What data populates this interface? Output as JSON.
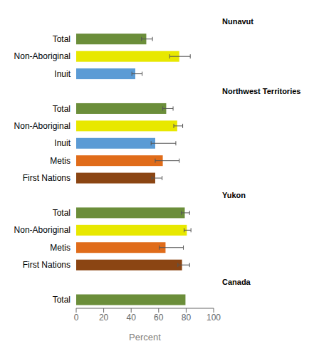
{
  "chart_data": {
    "type": "bar",
    "orientation": "horizontal",
    "xlabel": "Percent",
    "xlim": [
      0,
      100
    ],
    "xticks": [
      0,
      20,
      40,
      60,
      80,
      100
    ],
    "sections": [
      {
        "label": "Nunavut",
        "categories": [
          "Total",
          "Non-Aboriginal",
          "Inuit"
        ],
        "values": [
          51.0,
          75.0,
          43.0
        ],
        "ci_lower": [
          47.5,
          68.0,
          40.5
        ],
        "ci_upper": [
          55.5,
          83.0,
          48.0
        ],
        "colors": [
          "#6b8e3a",
          "#e8e800",
          "#5b9bd5"
        ]
      },
      {
        "label": "Northwest Territories",
        "categories": [
          "Total",
          "Non-Aboriginal",
          "Inuit",
          "Metis",
          "First Nations"
        ],
        "values": [
          65.5,
          73.5,
          57.5,
          63.0,
          57.5
        ],
        "ci_lower": [
          63.0,
          71.0,
          54.5,
          57.5,
          55.0
        ],
        "ci_upper": [
          70.5,
          77.5,
          72.5,
          75.0,
          62.5
        ],
        "colors": [
          "#6b8e3a",
          "#e8e800",
          "#5b9bd5",
          "#e06c1a",
          "#8b4513"
        ]
      },
      {
        "label": "Yukon",
        "categories": [
          "Total",
          "Non-Aboriginal",
          "Metis",
          "First Nations"
        ],
        "values": [
          79.0,
          80.5,
          65.0,
          77.0
        ],
        "ci_lower": [
          76.5,
          78.5,
          60.5,
          74.0
        ],
        "ci_upper": [
          82.5,
          83.5,
          78.0,
          82.5
        ],
        "colors": [
          "#6b8e3a",
          "#e8e800",
          "#e06c1a",
          "#8b4513"
        ]
      },
      {
        "label": "Canada",
        "categories": [
          "Total"
        ],
        "values": [
          79.5
        ],
        "ci_lower": [
          79.5
        ],
        "ci_upper": [
          79.5
        ],
        "colors": [
          "#6b8e3a"
        ]
      }
    ]
  }
}
